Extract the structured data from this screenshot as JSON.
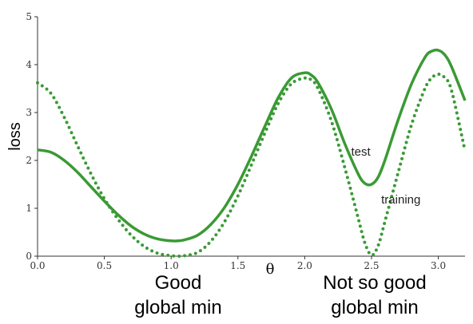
{
  "chart_data": {
    "type": "line",
    "xlabel": "θ",
    "ylabel": "loss",
    "xlim": [
      0.0,
      3.2
    ],
    "ylim": [
      0,
      5
    ],
    "xticks": [
      "0.0",
      "0.5",
      "1.0",
      "1.5",
      "2.0",
      "2.5",
      "3.0"
    ],
    "yticks": [
      "0",
      "1",
      "2",
      "3",
      "4",
      "5"
    ],
    "grid": false,
    "color": "#3a9a35",
    "series": [
      {
        "name": "test",
        "style": "solid",
        "x": [
          0.0,
          0.1,
          0.2,
          0.3,
          0.4,
          0.5,
          0.6,
          0.7,
          0.8,
          0.9,
          1.0,
          1.05,
          1.1,
          1.2,
          1.3,
          1.4,
          1.5,
          1.6,
          1.7,
          1.8,
          1.9,
          2.0,
          2.05,
          2.1,
          2.2,
          2.3,
          2.4,
          2.45,
          2.5,
          2.55,
          2.6,
          2.7,
          2.8,
          2.9,
          2.95,
          3.0,
          3.05,
          3.1,
          3.2
        ],
        "y": [
          2.22,
          2.17,
          2.0,
          1.75,
          1.45,
          1.15,
          0.87,
          0.63,
          0.46,
          0.36,
          0.32,
          0.32,
          0.34,
          0.44,
          0.67,
          1.02,
          1.5,
          2.08,
          2.7,
          3.3,
          3.72,
          3.83,
          3.78,
          3.62,
          3.07,
          2.35,
          1.72,
          1.52,
          1.5,
          1.65,
          2.0,
          2.85,
          3.6,
          4.15,
          4.28,
          4.3,
          4.2,
          3.95,
          3.25
        ]
      },
      {
        "name": "training",
        "style": "dotted",
        "x": [
          0.0,
          0.1,
          0.2,
          0.3,
          0.4,
          0.5,
          0.6,
          0.7,
          0.8,
          0.9,
          1.0,
          1.05,
          1.1,
          1.2,
          1.3,
          1.4,
          1.5,
          1.6,
          1.7,
          1.8,
          1.9,
          2.0,
          2.05,
          2.1,
          2.2,
          2.3,
          2.4,
          2.45,
          2.5,
          2.55,
          2.6,
          2.7,
          2.8,
          2.9,
          2.95,
          3.0,
          3.05,
          3.1,
          3.2
        ],
        "y": [
          3.62,
          3.4,
          2.9,
          2.3,
          1.72,
          1.2,
          0.78,
          0.44,
          0.2,
          0.06,
          0.01,
          0.0,
          0.01,
          0.08,
          0.32,
          0.72,
          1.26,
          1.9,
          2.56,
          3.18,
          3.6,
          3.72,
          3.68,
          3.5,
          2.82,
          1.85,
          0.8,
          0.28,
          0.02,
          0.22,
          0.72,
          1.75,
          2.75,
          3.5,
          3.72,
          3.8,
          3.72,
          3.45,
          2.2
        ]
      }
    ],
    "curve_labels": [
      {
        "text": "test",
        "x": 2.42,
        "y": 2.1
      },
      {
        "text": "training",
        "x": 2.72,
        "y": 1.1
      }
    ],
    "annotations": {
      "left": [
        "Good",
        "global min"
      ],
      "right": [
        "Not so good",
        "global min"
      ]
    }
  }
}
